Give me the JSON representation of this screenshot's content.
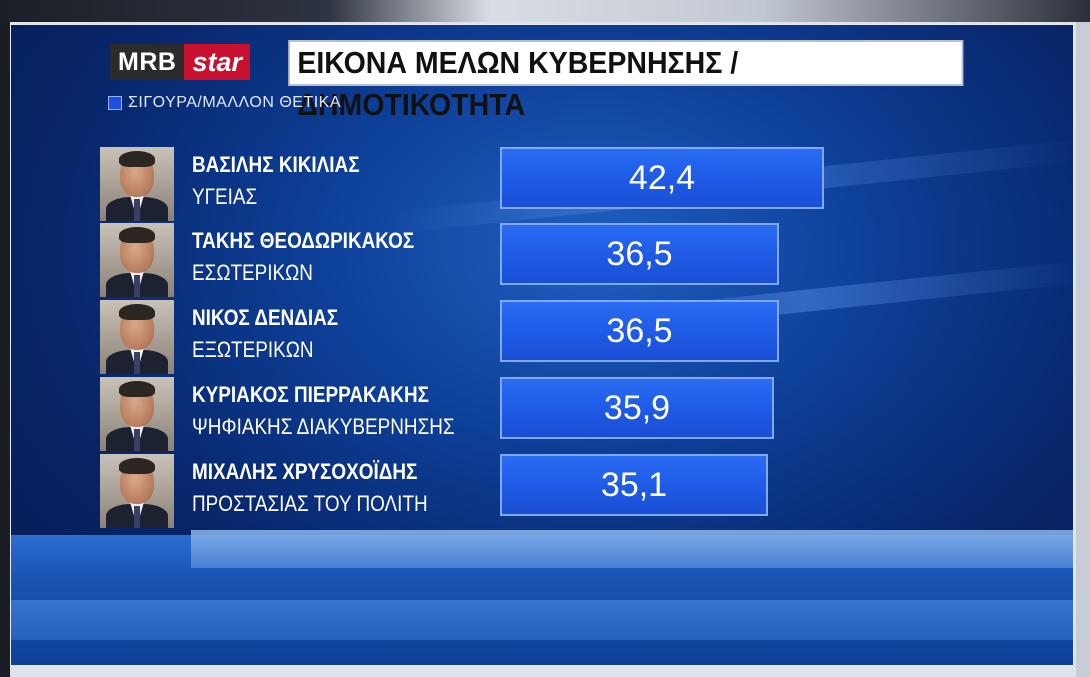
{
  "header": {
    "logo_part1": "MRB",
    "logo_part2": "star",
    "title": "ΕΙΚΟΝΑ ΜΕΛΩΝ ΚΥΒΕΡΝΗΣΗΣ /ΔΗΜΟΤΙΚΟΤΗΤΑ"
  },
  "legend": {
    "label": "ΣΙΓΟΥΡΑ/ΜΑΛΛΟΝ ΘΕΤΙΚΑ",
    "color": "#1f4fe0"
  },
  "colors": {
    "bar": "#1f5be6",
    "background": "#0d3e96",
    "logo_red": "#c8102e"
  },
  "rows": [
    {
      "name": "ΒΑΣΙΛΗΣ ΚΙΚΙΛΙΑΣ",
      "ministry": "ΥΓΕΙΑΣ",
      "value_label": "42,4",
      "photo": "minister-photo"
    },
    {
      "name": "ΤΑΚΗΣ ΘΕΟΔΩΡΙΚΑΚΟΣ",
      "ministry": "ΕΣΩΤΕΡΙΚΩΝ",
      "value_label": "36,5",
      "photo": "minister-photo"
    },
    {
      "name": "ΝΙΚΟΣ ΔΕΝΔΙΑΣ",
      "ministry": "ΕΞΩΤΕΡΙΚΩΝ",
      "value_label": "36,5",
      "photo": "minister-photo"
    },
    {
      "name": "ΚΥΡΙΑΚΟΣ ΠΙΕΡΡΑΚΑΚΗΣ",
      "ministry": "ΨΗΦΙΑΚΗΣ ΔΙΑΚΥΒΕΡΝΗΣΗΣ",
      "value_label": "35,9",
      "photo": "minister-photo"
    },
    {
      "name": "ΜΙΧΑΛΗΣ ΧΡΥΣΟΧΟΪΔΗΣ",
      "ministry": "ΠΡΟΣΤΑΣΙΑΣ ΤΟΥ ΠΟΛΙΤΗ",
      "value_label": "35,1",
      "photo": "minister-photo"
    }
  ],
  "chart_data": {
    "type": "bar",
    "orientation": "horizontal",
    "title": "ΕΙΚΟΝΑ ΜΕΛΩΝ ΚΥΒΕΡΝΗΣΗΣ /ΔΗΜΟΤΙΚΟΤΗΤΑ",
    "categories": [
      "ΒΑΣΙΛΗΣ ΚΙΚΙΛΙΑΣ ΥΓΕΙΑΣ",
      "ΤΑΚΗΣ ΘΕΟΔΩΡΙΚΑΚΟΣ ΕΣΩΤΕΡΙΚΩΝ",
      "ΝΙΚΟΣ ΔΕΝΔΙΑΣ ΕΞΩΤΕΡΙΚΩΝ",
      "ΚΥΡΙΑΚΟΣ ΠΙΕΡΡΑΚΑΚΗΣ ΨΗΦΙΑΚΗΣ ΔΙΑΚΥΒΕΡΝΗΣΗΣ",
      "ΜΙΧΑΛΗΣ ΧΡΥΣΟΧΟΪΔΗΣ ΠΡΟΣΤΑΣΙΑΣ ΤΟΥ ΠΟΛΙΤΗ"
    ],
    "series": [
      {
        "name": "ΣΙΓΟΥΡΑ/ΜΑΛΛΟΝ ΘΕΤΙΚΑ",
        "values": [
          42.4,
          36.5,
          36.5,
          35.9,
          35.1
        ]
      }
    ],
    "legend_position": "top-left",
    "grid": false
  }
}
